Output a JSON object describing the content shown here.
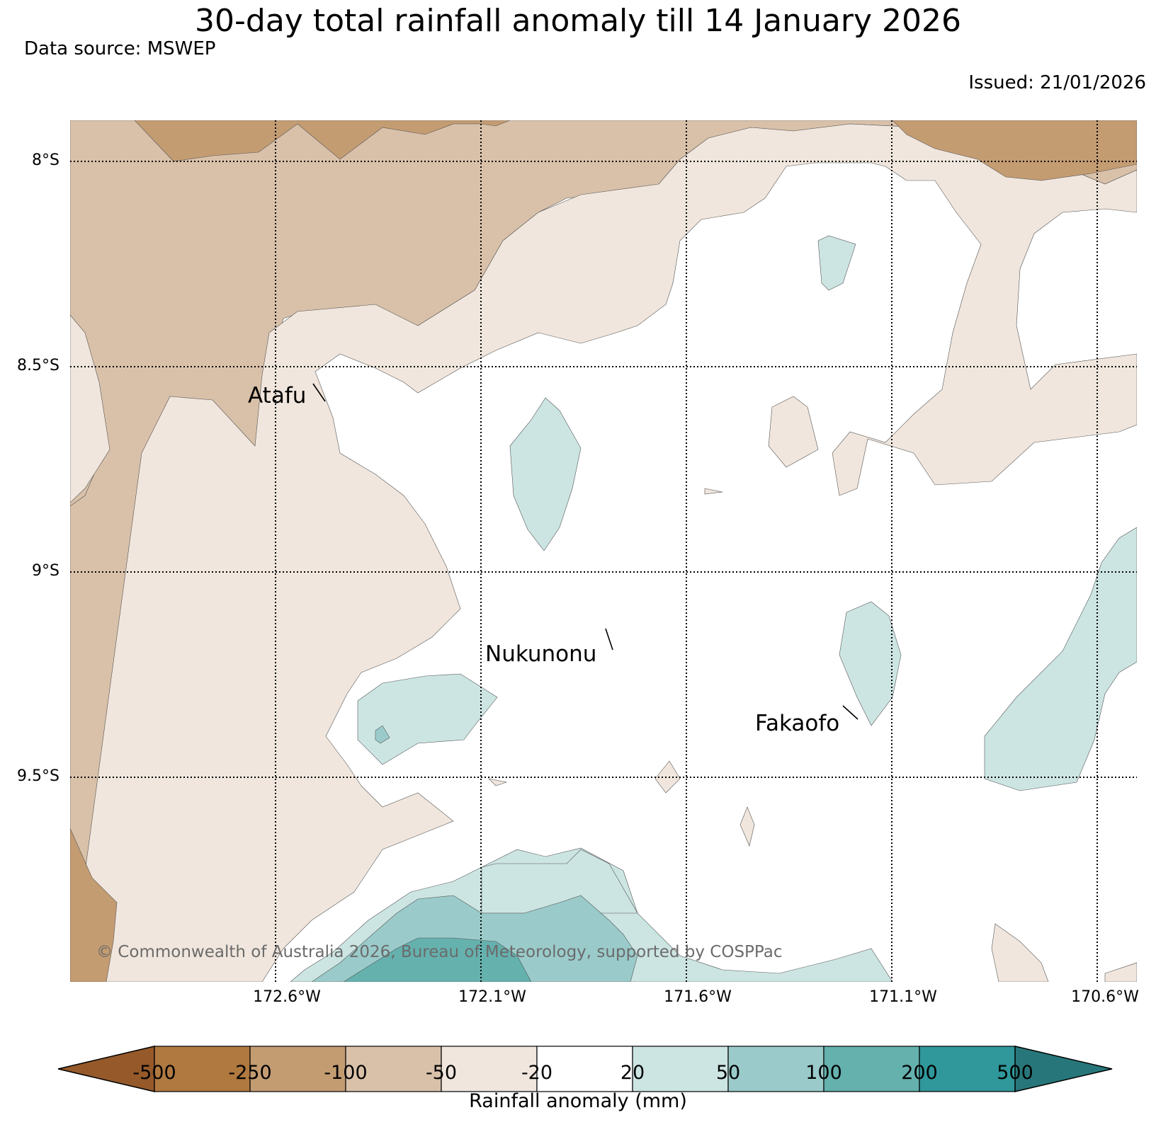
{
  "title": "30-day total rainfall anomaly till 14 January 2026",
  "data_source": "Data source: MSWEP",
  "issued": "Issued: 21/01/2026",
  "latitude_labels": [
    "8°S",
    "8.5°S",
    "9°S",
    "9.5°S"
  ],
  "longitude_labels": [
    "172.6°W",
    "172.1°W",
    "171.6°W",
    "171.1°W",
    "170.6°W"
  ],
  "places": [
    {
      "name": "Atafu"
    },
    {
      "name": "Nukunonu"
    },
    {
      "name": "Fakaofo"
    }
  ],
  "copyright": "© Commonwealth of Australia 2026, Bureau of Meteorology, supported by COSPPac",
  "colorbar": {
    "label": "Rainfall anomaly (mm)",
    "ticks": [
      "-500",
      "-250",
      "-100",
      "-50",
      "-20",
      "20",
      "50",
      "100",
      "200",
      "500"
    ],
    "colors": [
      "#b07940",
      "#c49c72",
      "#d9c1a9",
      "#f0e6dd",
      "#ffffff",
      "#cce5e3",
      "#9acbca",
      "#65b1ae",
      "#30979a"
    ],
    "extend_low_color": "#95592a",
    "extend_high_color": "#27777a"
  },
  "palette": {
    "dry_250": "#c49c72",
    "dry_100": "#d9c1a9",
    "dry_50": "#f0e6dd",
    "wet_20": "#cce5e3",
    "wet_50": "#9acbca",
    "wet_100": "#65b1ae",
    "dry_500": "#b07940"
  }
}
